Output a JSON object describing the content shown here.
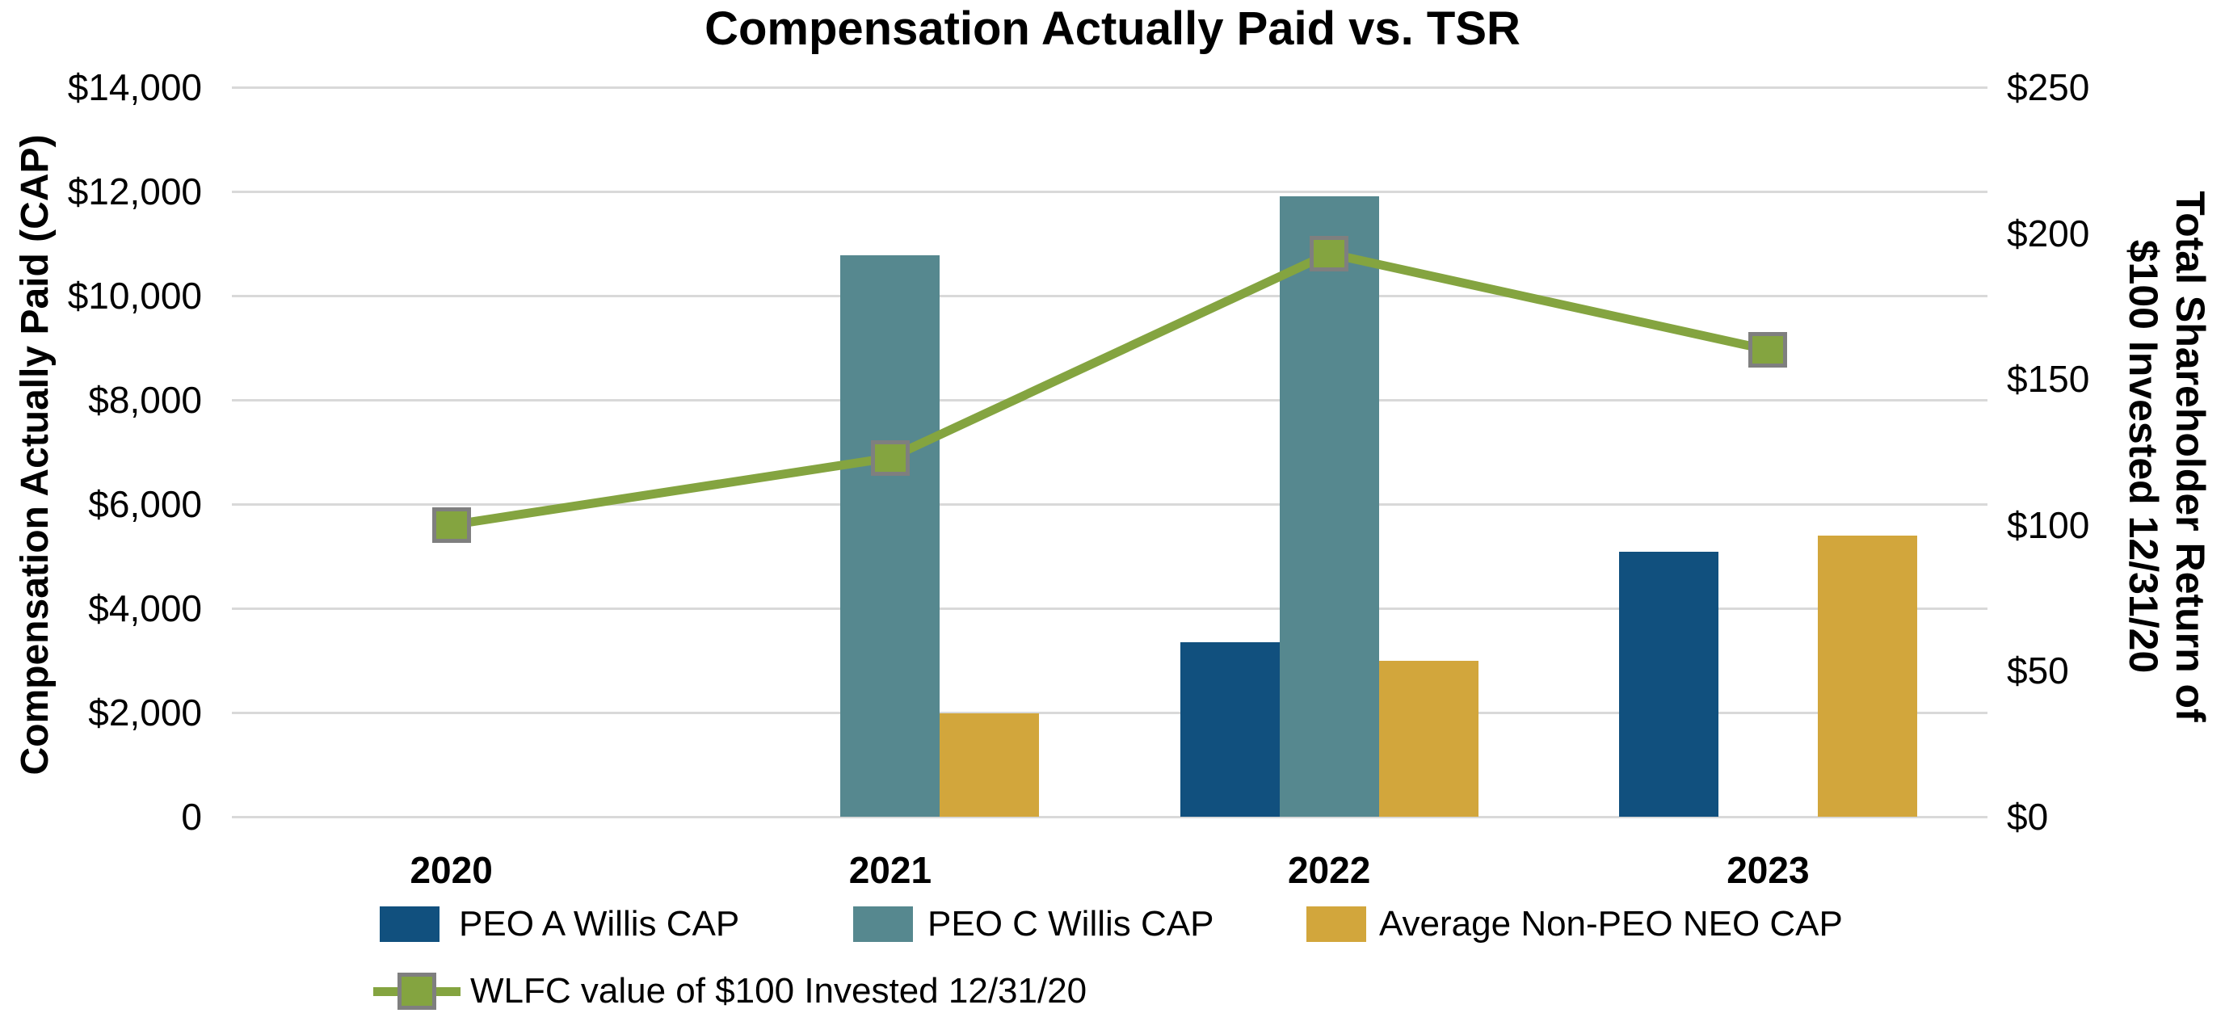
{
  "title": "Compensation Actually Paid vs. TSR",
  "left_axis": {
    "title": "Compensation Actually Paid (CAP)",
    "tick_labels": [
      "$14,000",
      "$12,000",
      "$10,000",
      "$8,000",
      "$6,000",
      "$4,000",
      "$2,000",
      "0"
    ],
    "tick_values": [
      14000,
      12000,
      10000,
      8000,
      6000,
      4000,
      2000,
      0
    ],
    "min": 0,
    "max": 14000
  },
  "right_axis": {
    "title_lines": [
      "Total Shareholder Return of",
      "$100 Invested 12/31/20"
    ],
    "tick_labels": [
      "$250",
      "$200",
      "$150",
      "$100",
      "$50",
      "$0"
    ],
    "tick_values": [
      250,
      200,
      150,
      100,
      50,
      0
    ],
    "min": 0,
    "max": 250
  },
  "x_axis": {
    "categories": [
      "2020",
      "2021",
      "2022",
      "2023"
    ]
  },
  "colors": {
    "peo_a_blue": "#11507E",
    "peo_c_teal": "#56888F",
    "avg_neo_gold": "#D2A63C",
    "tsr_line_green": "#84A440",
    "marker_border_gray": "#7F7F7F",
    "gridline_gray": "#D9D9D9",
    "text": "#000000"
  },
  "chart_data": {
    "type": "bar+line dual-axis combo",
    "categories": [
      "2020",
      "2021",
      "2022",
      "2023"
    ],
    "series": [
      {
        "name": "PEO A Willis CAP",
        "type": "bar",
        "axis": "left",
        "color": "#11507E",
        "values": [
          null,
          null,
          3350,
          5080
        ]
      },
      {
        "name": "PEO C Willis CAP",
        "type": "bar",
        "axis": "left",
        "color": "#56888F",
        "values": [
          null,
          10780,
          11900,
          null
        ]
      },
      {
        "name": "Average Non-PEO NEO CAP",
        "type": "bar",
        "axis": "left",
        "color": "#D2A63C",
        "values": [
          null,
          1980,
          2990,
          5390
        ]
      },
      {
        "name": "WLFC value of $100 Invested 12/31/20",
        "type": "line",
        "axis": "right",
        "color": "#84A440",
        "marker": "square",
        "marker_border": "#7F7F7F",
        "values": [
          100,
          123,
          193,
          160
        ]
      }
    ],
    "left_ylim": [
      0,
      14000
    ],
    "right_ylim": [
      0,
      250
    ],
    "grid": true,
    "legend_position": "bottom"
  }
}
